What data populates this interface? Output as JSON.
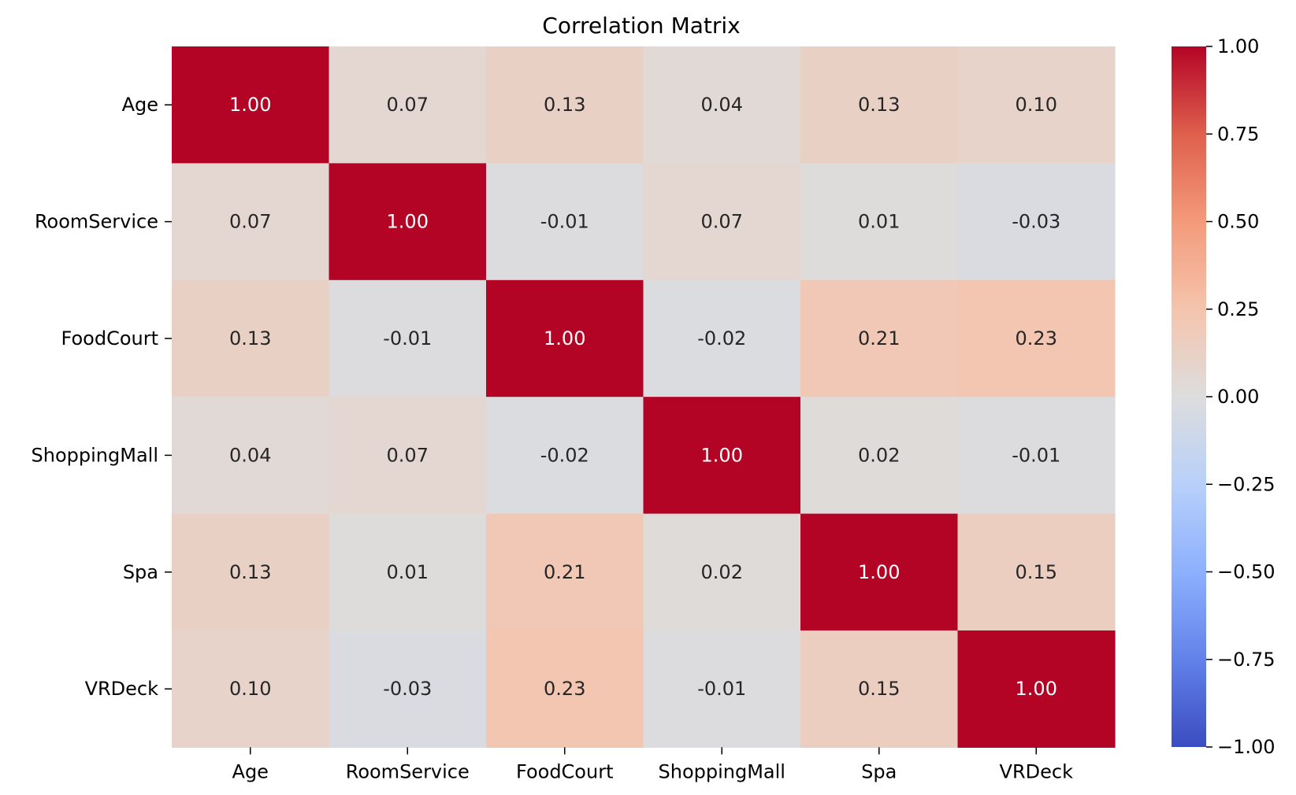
{
  "chart_data": {
    "type": "heatmap",
    "title": "Correlation Matrix",
    "xlabel": "",
    "ylabel": "",
    "x_categories": [
      "Age",
      "RoomService",
      "FoodCourt",
      "ShoppingMall",
      "Spa",
      "VRDeck"
    ],
    "y_categories": [
      "Age",
      "RoomService",
      "FoodCourt",
      "ShoppingMall",
      "Spa",
      "VRDeck"
    ],
    "values": [
      [
        1.0,
        0.07,
        0.13,
        0.04,
        0.13,
        0.1
      ],
      [
        0.07,
        1.0,
        -0.01,
        0.07,
        0.01,
        -0.03
      ],
      [
        0.13,
        -0.01,
        1.0,
        -0.02,
        0.21,
        0.23
      ],
      [
        0.04,
        0.07,
        -0.02,
        1.0,
        0.02,
        -0.01
      ],
      [
        0.13,
        0.01,
        0.21,
        0.02,
        1.0,
        0.15
      ],
      [
        0.1,
        -0.03,
        0.23,
        -0.01,
        0.15,
        1.0
      ]
    ],
    "value_labels": [
      [
        "1.00",
        "0.07",
        "0.13",
        "0.04",
        "0.13",
        "0.10"
      ],
      [
        "0.07",
        "1.00",
        "-0.01",
        "0.07",
        "0.01",
        "-0.03"
      ],
      [
        "0.13",
        "-0.01",
        "1.00",
        "-0.02",
        "0.21",
        "0.23"
      ],
      [
        "0.04",
        "0.07",
        "-0.02",
        "1.00",
        "0.02",
        "-0.01"
      ],
      [
        "0.13",
        "0.01",
        "0.21",
        "0.02",
        "1.00",
        "0.15"
      ],
      [
        "0.10",
        "-0.03",
        "0.23",
        "-0.01",
        "0.15",
        "1.00"
      ]
    ],
    "colormap": "coolwarm",
    "vmin": -1.0,
    "vmax": 1.0,
    "colorbar_ticks": [
      1.0,
      0.75,
      0.5,
      0.25,
      0.0,
      -0.25,
      -0.5,
      -0.75,
      -1.0
    ],
    "colorbar_tick_labels": [
      "1.00",
      "0.75",
      "0.50",
      "0.25",
      "0.00",
      "−0.25",
      "−0.50",
      "−0.75",
      "−1.00"
    ],
    "grid": false,
    "legend": "colorbar right"
  }
}
